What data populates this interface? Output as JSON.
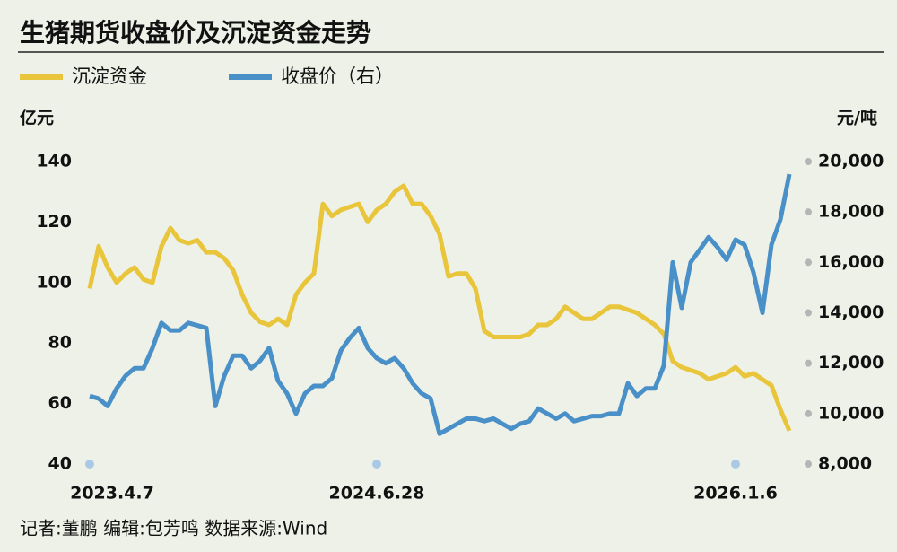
{
  "chart_data": {
    "type": "line",
    "title": "生猪期货收盘价及沉淀资金走势",
    "y_label": "亿元",
    "y2_label": "元/吨",
    "footer": "记者:董鹏  编辑:包芳鸣  数据来源:Wind",
    "categories": [
      "2023.4.7",
      null,
      null,
      null,
      null,
      null,
      null,
      null,
      null,
      null,
      null,
      null,
      null,
      null,
      null,
      null,
      null,
      null,
      null,
      null,
      null,
      null,
      null,
      null,
      null,
      null,
      null,
      null,
      null,
      null,
      null,
      null,
      "2024.6.28",
      null,
      null,
      null,
      null,
      null,
      null,
      null,
      null,
      null,
      null,
      null,
      null,
      null,
      null,
      null,
      null,
      null,
      null,
      null,
      null,
      null,
      null,
      null,
      null,
      null,
      null,
      null,
      null,
      null,
      null,
      null,
      null,
      null,
      null,
      null,
      null,
      null,
      null,
      null,
      "2026.1.6",
      null,
      null,
      null,
      null,
      null,
      null
    ],
    "series": [
      {
        "name": "沉淀资金",
        "color": "#e8c53a",
        "values": [
          98,
          112,
          105,
          100,
          103,
          105,
          101,
          100,
          112,
          118,
          114,
          113,
          114,
          110,
          110,
          108,
          104,
          96,
          90,
          87,
          86,
          88,
          86,
          96,
          100,
          103,
          126,
          122,
          124,
          125,
          126,
          120,
          124,
          126,
          130,
          132,
          126,
          126,
          122,
          116,
          102,
          103,
          103,
          98,
          84,
          82,
          82,
          82,
          82,
          83,
          86,
          86,
          88,
          92,
          90,
          88,
          88,
          90,
          92,
          92,
          91,
          90,
          88,
          86,
          83,
          74,
          72,
          71,
          70,
          68,
          69,
          70,
          72,
          69,
          70,
          68,
          66,
          58,
          51
        ]
      },
      {
        "name": "收盘价（右）",
        "color": "#4a90c8",
        "axis": "y2",
        "values": [
          10700,
          10600,
          10300,
          11000,
          11500,
          11800,
          11800,
          12600,
          13600,
          13300,
          13300,
          13600,
          13500,
          13400,
          10300,
          11500,
          12300,
          12300,
          11800,
          12100,
          12600,
          11300,
          10800,
          10000,
          10800,
          11100,
          11100,
          11400,
          12500,
          13000,
          13400,
          12600,
          12200,
          12000,
          12200,
          11800,
          11200,
          10800,
          10600,
          9200,
          9400,
          9600,
          9800,
          9800,
          9700,
          9800,
          9600,
          9400,
          9600,
          9700,
          10200,
          10000,
          9800,
          10000,
          9700,
          9800,
          9900,
          9900,
          10000,
          10000,
          11200,
          10700,
          11000,
          11000,
          11900,
          16000,
          14200,
          16000,
          16500,
          17000,
          16600,
          16100,
          16900,
          16700,
          15600,
          14000,
          16700,
          17700,
          19500
        ]
      }
    ],
    "ylim": [
      40,
      140
    ],
    "yticks": [
      40,
      60,
      80,
      100,
      120,
      140
    ],
    "y2lim": [
      8000,
      20000
    ],
    "y2ticks": [
      {
        "value": 8000,
        "label": "8,000"
      },
      {
        "value": 10000,
        "label": "10,000"
      },
      {
        "value": 12000,
        "label": "12,000"
      },
      {
        "value": 14000,
        "label": "14,000"
      },
      {
        "value": 16000,
        "label": "16,000"
      },
      {
        "value": 18000,
        "label": "18,000"
      },
      {
        "value": 20000,
        "label": "20,000"
      }
    ]
  }
}
